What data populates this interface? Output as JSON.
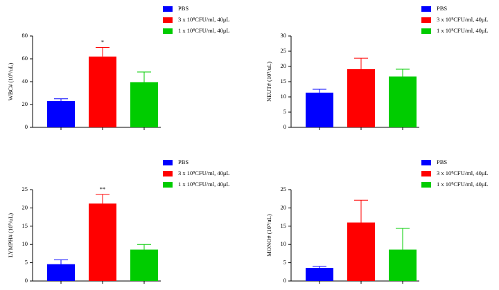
{
  "chart_data": [
    {
      "type": "bar",
      "y_label": "WBC# (10⁹/uL)",
      "ylim": [
        0,
        80
      ],
      "yticks": [
        0,
        20,
        40,
        60,
        80
      ],
      "series": [
        {
          "name": "PBS",
          "color": "#0000ff",
          "values": [
            23
          ],
          "errors": [
            2
          ]
        },
        {
          "name": "3 x 10⁸CFU/ml, 40μL",
          "color": "#ff0000",
          "values": [
            62
          ],
          "errors": [
            8
          ],
          "annotation": "*"
        },
        {
          "name": "1 x 10⁸CFU/ml, 40μL",
          "color": "#00cc00",
          "values": [
            39.5
          ],
          "errors": [
            9
          ]
        }
      ]
    },
    {
      "type": "bar",
      "y_label": "NEUT# (10⁹/uL)",
      "ylim": [
        0,
        30
      ],
      "yticks": [
        0,
        5,
        10,
        15,
        20,
        25,
        30
      ],
      "series": [
        {
          "name": "PBS",
          "color": "#0000ff",
          "values": [
            11.4
          ],
          "errors": [
            1.1
          ]
        },
        {
          "name": "3 x 10⁸CFU/ml, 40μL",
          "color": "#ff0000",
          "values": [
            19.1
          ],
          "errors": [
            3.6
          ]
        },
        {
          "name": "1 x 10⁸CFU/ml, 40μL",
          "color": "#00cc00",
          "values": [
            16.7
          ],
          "errors": [
            2.4
          ]
        }
      ]
    },
    {
      "type": "bar",
      "y_label": "LYMPH# (10⁹/uL)",
      "ylim": [
        0,
        25
      ],
      "yticks": [
        0,
        5,
        10,
        15,
        20,
        25
      ],
      "series": [
        {
          "name": "PBS",
          "color": "#0000ff",
          "values": [
            4.6
          ],
          "errors": [
            1.2
          ]
        },
        {
          "name": "3 x 10⁸CFU/ml, 40μL",
          "color": "#ff0000",
          "values": [
            21.2
          ],
          "errors": [
            2.5
          ],
          "annotation": "**"
        },
        {
          "name": "1 x 10⁸CFU/ml, 40μL",
          "color": "#00cc00",
          "values": [
            8.6
          ],
          "errors": [
            1.4
          ]
        }
      ]
    },
    {
      "type": "bar",
      "y_label": "MONO# (10⁹/uL)",
      "ylim": [
        0,
        25
      ],
      "yticks": [
        0,
        5,
        10,
        15,
        20,
        25
      ],
      "series": [
        {
          "name": "PBS",
          "color": "#0000ff",
          "values": [
            3.6
          ],
          "errors": [
            0.4
          ]
        },
        {
          "name": "3 x 10⁸CFU/ml, 40μL",
          "color": "#ff0000",
          "values": [
            16
          ],
          "errors": [
            6.1
          ]
        },
        {
          "name": "1 x 10⁸CFU/ml, 40μL",
          "color": "#00cc00",
          "values": [
            8.6
          ],
          "errors": [
            5.8
          ]
        }
      ]
    }
  ]
}
